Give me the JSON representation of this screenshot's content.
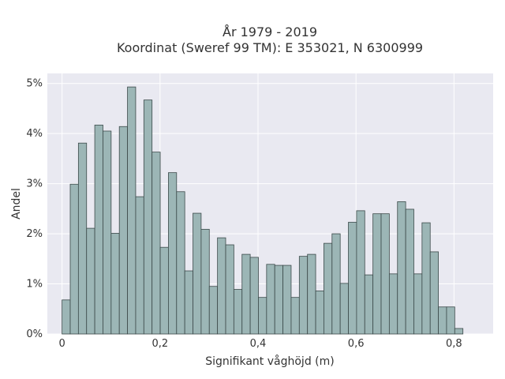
{
  "chart_data": {
    "type": "bar",
    "title_lines": [
      "År 1979 - 2019",
      "Koordinat (Sweref 99 TM): E 353021, N 6300999"
    ],
    "xlabel": "Signifikant våghöjd (m)",
    "ylabel": "Andel",
    "xlim": [
      -0.03,
      0.88
    ],
    "ylim": [
      0,
      5.2
    ],
    "x_ticks": [
      0,
      0.2,
      0.4,
      0.6,
      0.8
    ],
    "x_tick_labels": [
      "0",
      "0,2",
      "0,4",
      "0,6",
      "0,8"
    ],
    "y_ticks": [
      0,
      1,
      2,
      3,
      4,
      5
    ],
    "y_tick_labels": [
      "0%",
      "1%",
      "2%",
      "3%",
      "4%",
      "5%"
    ],
    "bin_width": 0.0167,
    "bin_start": 0,
    "values": [
      0.68,
      2.99,
      3.81,
      2.11,
      4.17,
      4.05,
      2.01,
      4.14,
      4.93,
      2.74,
      4.67,
      3.63,
      1.73,
      3.22,
      2.84,
      1.26,
      2.41,
      2.09,
      0.95,
      1.92,
      1.78,
      0.89,
      1.59,
      1.53,
      0.73,
      1.39,
      1.37,
      1.37,
      0.73,
      1.55,
      1.59,
      0.86,
      1.81,
      2.0,
      1.01,
      2.23,
      2.46,
      1.18,
      2.4,
      2.4,
      1.2,
      2.64,
      2.49,
      1.2,
      2.22,
      1.64,
      0.54,
      0.54,
      0.11
    ],
    "grid": true,
    "colors": {
      "plot_bg": "#e9e9f1",
      "bar_fill": "#9cb6b6",
      "bar_stroke": "#3c4a4a",
      "grid": "#ffffff",
      "text": "#333333"
    }
  }
}
